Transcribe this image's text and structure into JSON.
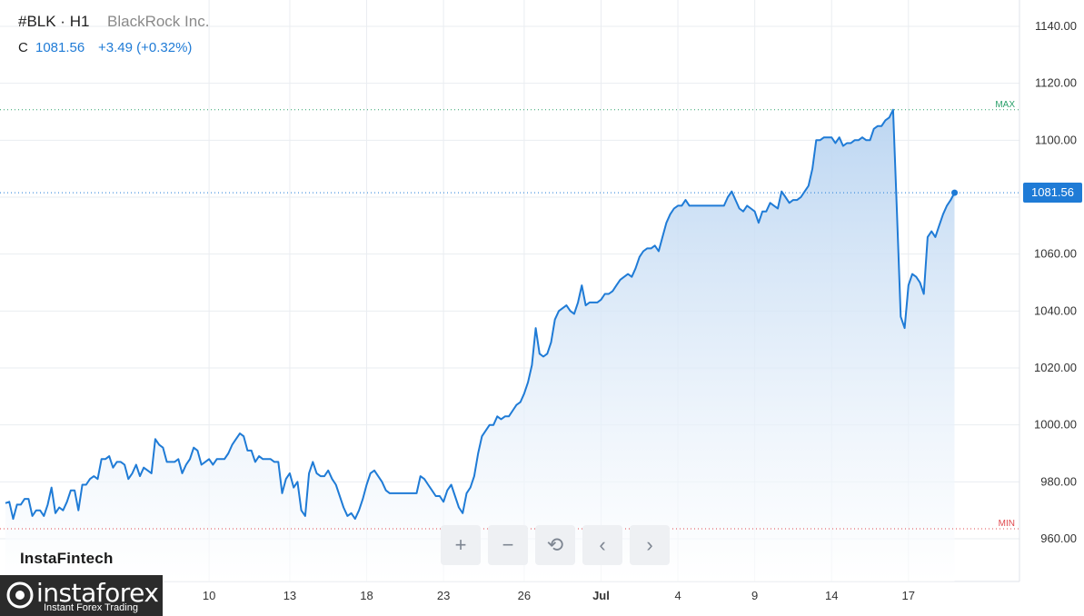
{
  "header": {
    "ticker": "#BLK · H1",
    "company": "BlackRock Inc.",
    "close_prefix": "C",
    "close_value": "1081.56",
    "close_change": "+3.49 (+0.32%)"
  },
  "watermark": "InstaFintech",
  "logo": {
    "name": "instaforex",
    "tagline": "Instant Forex Trading"
  },
  "toolbar": {
    "zoom_in": "+",
    "zoom_out": "−",
    "reset": "⟲",
    "back": "‹",
    "forward": "›"
  },
  "colors": {
    "line": "#1f7bd6",
    "fill_top": "#b9d4f1",
    "max_line": "#2aa06a",
    "min_line": "#e0484d",
    "current_line": "#1f7bd6",
    "grid": "#eaedf1"
  },
  "chart_data": {
    "type": "area",
    "title": "#BLK · H1",
    "subtitle": "BlackRock Inc.",
    "xlabel": "",
    "ylabel": "",
    "ylim": [
      945,
      1145
    ],
    "grid": true,
    "yticks": [
      960,
      980,
      1000,
      1020,
      1040,
      1060,
      1080,
      1100,
      1120,
      1140
    ],
    "ytick_labels": [
      "960.00",
      "980.00",
      "1000.00",
      "1020.00",
      "1040.00",
      "1060.00",
      "1080.00",
      "1100.00",
      "1120.00",
      "1140.00"
    ],
    "x_index_range": [
      0,
      249
    ],
    "xtick_labels": [
      {
        "label": "10",
        "index": 53
      },
      {
        "label": "13",
        "index": 74
      },
      {
        "label": "18",
        "index": 94
      },
      {
        "label": "23",
        "index": 114
      },
      {
        "label": "26",
        "index": 135
      },
      {
        "label": "Jul",
        "index": 155
      },
      {
        "label": "4",
        "index": 175
      },
      {
        "label": "9",
        "index": 195
      },
      {
        "label": "14",
        "index": 215
      },
      {
        "label": "17",
        "index": 235
      }
    ],
    "max": {
      "label": "MAX",
      "value": 1110.7
    },
    "min": {
      "label": "MIN",
      "value": 963.5
    },
    "current": {
      "label": "1081.56",
      "value": 1081.56
    },
    "series": [
      {
        "values": [
          972.5,
          973,
          967,
          972,
          972,
          974,
          974,
          968,
          970,
          970,
          968,
          972,
          978,
          969,
          971,
          970,
          973,
          977,
          977,
          970,
          979,
          979,
          981,
          982,
          981,
          988,
          988,
          989,
          985,
          987,
          987,
          986,
          981,
          983,
          986,
          982,
          985,
          984,
          983,
          995,
          993,
          992,
          987,
          987,
          987,
          988,
          983,
          986,
          988,
          992,
          991,
          986,
          987,
          988,
          986,
          988,
          988,
          988,
          990,
          993,
          995,
          997,
          996,
          991,
          991,
          987,
          989,
          988,
          988,
          988,
          987,
          987,
          976,
          981,
          983,
          978,
          980,
          970,
          968,
          983,
          987,
          983,
          982,
          982,
          984,
          981,
          979,
          975,
          971,
          968,
          969,
          967,
          970,
          974,
          979,
          983,
          984,
          982,
          980,
          977,
          976,
          976,
          976,
          976,
          976,
          976,
          976,
          976,
          982,
          981,
          979,
          977,
          975,
          975,
          973,
          977,
          979,
          975,
          971,
          969,
          976,
          978,
          982,
          990,
          996,
          998,
          1000,
          1000,
          1003,
          1002,
          1003,
          1003,
          1005,
          1007,
          1008,
          1011,
          1015,
          1021,
          1034,
          1025,
          1024,
          1025,
          1029,
          1037,
          1040,
          1041,
          1042,
          1040,
          1039,
          1043,
          1049,
          1042,
          1043,
          1043,
          1043,
          1044,
          1046,
          1046,
          1047,
          1049,
          1051,
          1052,
          1053,
          1052,
          1055,
          1059,
          1061,
          1062,
          1062,
          1063,
          1061,
          1066,
          1071,
          1074,
          1076,
          1077,
          1077,
          1079,
          1077,
          1077,
          1077,
          1077,
          1077,
          1077,
          1077,
          1077,
          1077,
          1077,
          1080,
          1082,
          1079,
          1076,
          1075,
          1077,
          1076,
          1075,
          1071,
          1075,
          1075,
          1078,
          1077,
          1076,
          1082,
          1080,
          1078,
          1079,
          1079,
          1080,
          1082,
          1084,
          1090,
          1100,
          1100,
          1101,
          1101,
          1101,
          1099,
          1101,
          1098,
          1099,
          1099,
          1100,
          1100,
          1101,
          1100,
          1100,
          1104,
          1105,
          1105,
          1107,
          1108,
          1110.7,
          1075,
          1038,
          1034,
          1049,
          1053,
          1052,
          1050,
          1046,
          1066,
          1068,
          1066,
          1070,
          1074,
          1077,
          1079,
          1081.56
        ]
      }
    ]
  }
}
